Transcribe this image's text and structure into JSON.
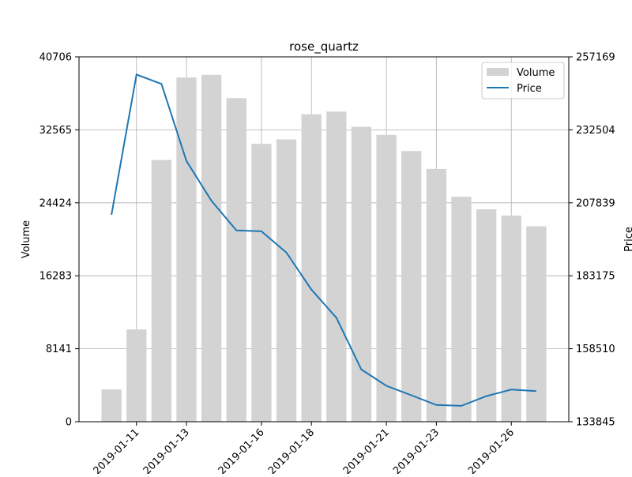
{
  "chart_data": {
    "type": "bar+line",
    "title": "rose_quartz",
    "xlabel": "",
    "ylabel_left": "Volume",
    "ylabel_right": "Price",
    "grid": true,
    "legend_position": "top-right",
    "legend": [
      "Volume",
      "Price"
    ],
    "colors": {
      "volume": "#d3d3d3",
      "price": "#1f77b4",
      "grid": "#b0b0b0"
    },
    "x_tick_labels": [
      "2019-01-11",
      "2019-01-13",
      "2019-01-16",
      "2019-01-18",
      "2019-01-21",
      "2019-01-23",
      "2019-01-26"
    ],
    "y_left_ticks": [
      "0",
      "8141",
      "16283",
      "24424",
      "32565",
      "40706"
    ],
    "y_right_ticks": [
      "133845",
      "158510",
      "183175",
      "207839",
      "232504",
      "257169"
    ],
    "ylim_left": [
      0,
      40706
    ],
    "ylim_right": [
      133845,
      257169
    ],
    "dates": [
      "2019-01-10",
      "2019-01-11",
      "2019-01-12",
      "2019-01-13",
      "2019-01-14",
      "2019-01-15",
      "2019-01-16",
      "2019-01-17",
      "2019-01-18",
      "2019-01-19",
      "2019-01-20",
      "2019-01-21",
      "2019-01-22",
      "2019-01-23",
      "2019-01-24",
      "2019-01-25",
      "2019-01-26",
      "2019-01-27"
    ],
    "series": [
      {
        "name": "Volume",
        "type": "bar",
        "axis": "left",
        "values": [
          3600,
          10300,
          29200,
          38400,
          38700,
          36100,
          31000,
          31500,
          34300,
          34600,
          32900,
          32000,
          30200,
          28200,
          25100,
          23700,
          23000,
          21800
        ]
      },
      {
        "name": "Price",
        "type": "line",
        "axis": "right",
        "values": [
          203800,
          251200,
          248000,
          222000,
          208500,
          198500,
          198200,
          191000,
          178500,
          169000,
          151500,
          146000,
          142800,
          139500,
          139200,
          142500,
          144700,
          144200
        ]
      }
    ]
  }
}
